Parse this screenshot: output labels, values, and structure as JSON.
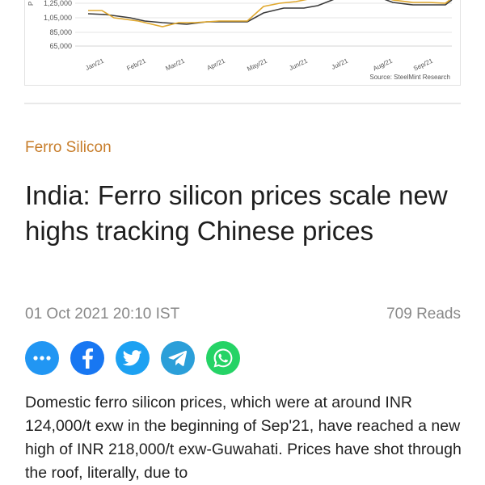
{
  "chart": {
    "y_ticks": [
      "1,25,000",
      "1,05,000",
      "85,000",
      "65,000"
    ],
    "x_ticks": [
      "Jan/21",
      "Feb/21",
      "Mar/21",
      "Apr/21",
      "May/21",
      "Jun/21",
      "Jul/21",
      "Aug/21",
      "Sep/21"
    ],
    "source": "Source: SteelMint Research",
    "colors": {
      "series_a": "#e0a82e",
      "series_b": "#3a3a3a",
      "grid": "#e6e6e6"
    }
  },
  "article": {
    "category": "Ferro Silicon",
    "title": "India: Ferro silicon prices  scale new  highs  tracking Chinese prices",
    "date": "01 Oct 2021 20:10 IST",
    "reads": "709 Reads",
    "body": "Domestic ferro silicon prices, which were at around INR 124,000/t exw in the beginning of Sep'21, have reached a new high of INR 218,000/t exw-Guwahati. Prices have shot through the roof, literally, due to"
  },
  "share": {
    "icons": [
      "more-icon",
      "facebook-icon",
      "twitter-icon",
      "telegram-icon",
      "whatsapp-icon"
    ],
    "colors": [
      "#2196f3",
      "#1877f2",
      "#1da1f2",
      "#2b9fd9",
      "#25d366"
    ]
  }
}
